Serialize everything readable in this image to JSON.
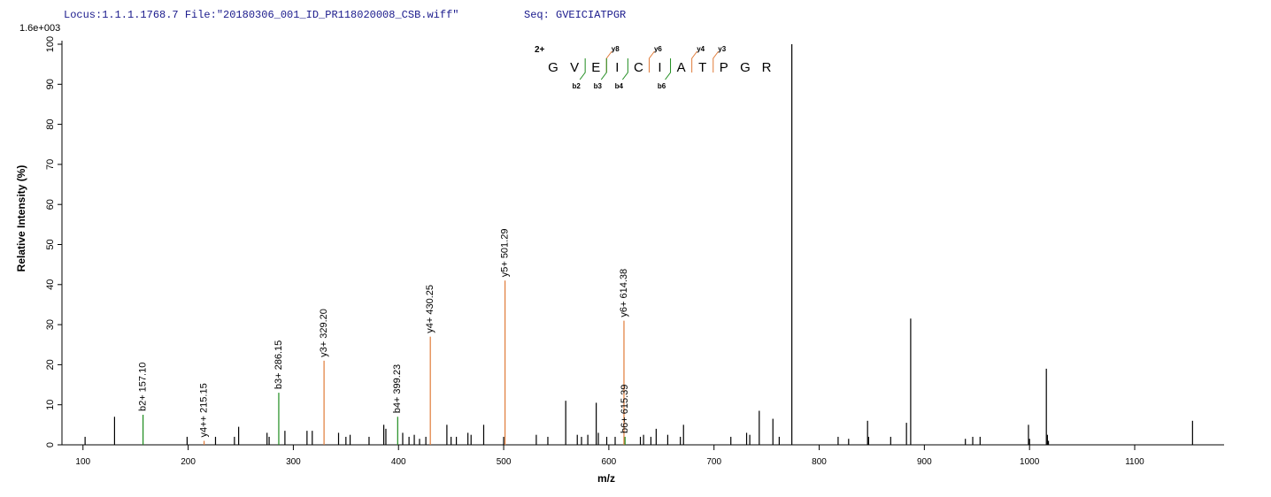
{
  "chart_data": {
    "type": "spectrum",
    "header": "Locus:1.1.1.1768.7 File:\"20180306_001_ID_PR118020008_CSB.wiff\"",
    "sequence_title": "Seq: GVEICIATPGR",
    "scale_label": "1.6e+003",
    "x_label": "m/z",
    "y_label": "Relative  Intensity (%)",
    "xlim": [
      80,
      1185
    ],
    "ylim": [
      0,
      100
    ],
    "xticks": [
      100,
      200,
      300,
      400,
      500,
      600,
      700,
      800,
      900,
      1000,
      1100
    ],
    "yticks": [
      0,
      10,
      20,
      30,
      40,
      50,
      60,
      70,
      80,
      90,
      100
    ],
    "series": [
      {
        "color": "#000000",
        "x": [
          102,
          130,
          199,
          226,
          244,
          248,
          275,
          277,
          292,
          313,
          318,
          343,
          350,
          354,
          372,
          386,
          388,
          404,
          410,
          415,
          420,
          426,
          446,
          450,
          455,
          466,
          469,
          481,
          500,
          531,
          542,
          559,
          570,
          574,
          580,
          588,
          590,
          598,
          606,
          630,
          633,
          640,
          645,
          656,
          668,
          671,
          716,
          731,
          734,
          743,
          756,
          762,
          774,
          818,
          828,
          846,
          847,
          868,
          883,
          887,
          939,
          946,
          953,
          999,
          1000,
          1016,
          1017,
          1018,
          1155
        ],
        "values": [
          2,
          7,
          2,
          2,
          2,
          4.5,
          3,
          2,
          3.5,
          3.5,
          3.5,
          3,
          2,
          2.5,
          2,
          5,
          4,
          3,
          2,
          2.5,
          1.5,
          2,
          5,
          2,
          2,
          3,
          2.5,
          5,
          2,
          2.5,
          2,
          11,
          2.5,
          2,
          2.5,
          10.5,
          3,
          2,
          2,
          2,
          2.5,
          2,
          4,
          2.5,
          2,
          5,
          2,
          3,
          2.5,
          8.5,
          6.5,
          2,
          100,
          2,
          1.5,
          6,
          2,
          2,
          5.5,
          31.5,
          1.5,
          2,
          2,
          5,
          1.5,
          19,
          2.5,
          1,
          6
        ]
      },
      {
        "color": "#e07b39",
        "x": [
          215.15,
          329.2,
          430.25,
          501.29,
          614.38
        ],
        "values": [
          1,
          21,
          27,
          41,
          31
        ],
        "labels": [
          "y4++ 215.15",
          "y3+ 329.20",
          "y4+ 430.25",
          "y5+ 501.29",
          "y6+ 614.38"
        ]
      },
      {
        "color": "#1e8c1e",
        "x": [
          157.1,
          286.15,
          399.23,
          615.39
        ],
        "values": [
          7.5,
          13,
          7,
          2
        ],
        "labels": [
          "b2+ 157.10",
          "b3+ 286.15",
          "b4+ 399.23",
          "b6+ 615.39"
        ]
      }
    ],
    "peptide": {
      "charge": "2+",
      "residues": [
        "G",
        "V",
        "E",
        "I",
        "C",
        "I",
        "A",
        "T",
        "P",
        "G",
        "R"
      ],
      "y_ions": [
        "y8",
        "y6",
        "y4",
        "y3"
      ],
      "y_color": "#e07b39",
      "b_ions": [
        "b2",
        "b3",
        "b4",
        "b6"
      ],
      "b_color": "#1e8c1e"
    }
  }
}
